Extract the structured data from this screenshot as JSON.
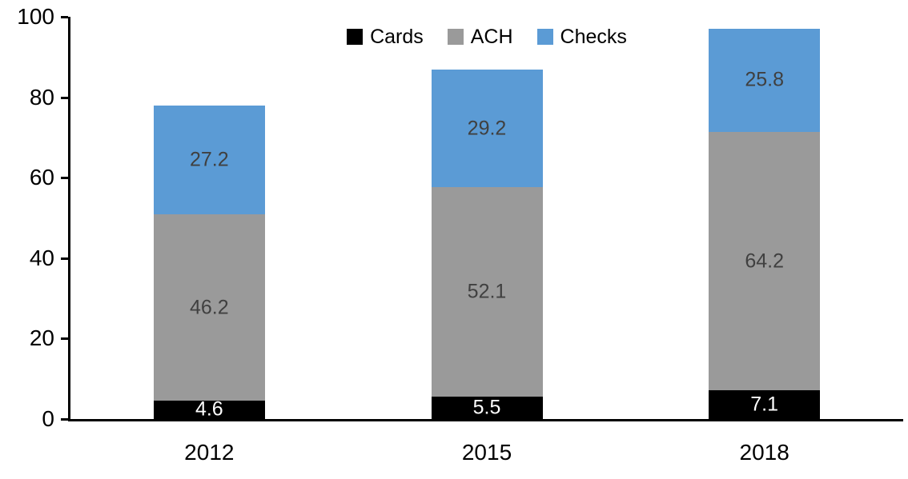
{
  "chart_data": {
    "type": "bar",
    "stacked": true,
    "title": "",
    "xlabel": "",
    "ylabel": "",
    "categories": [
      "2012",
      "2015",
      "2018"
    ],
    "series": [
      {
        "name": "Cards",
        "color": "#000000",
        "label_color": "#ffffff",
        "values": [
          4.6,
          5.5,
          7.1
        ]
      },
      {
        "name": "ACH",
        "color": "#9a9a9a",
        "label_color": "#404040",
        "values": [
          46.2,
          52.1,
          64.2
        ]
      },
      {
        "name": "Checks",
        "color": "#5b9bd5",
        "label_color": "#404040",
        "values": [
          27.2,
          29.2,
          25.8
        ]
      }
    ],
    "yticks": [
      0,
      20,
      40,
      60,
      80,
      100
    ],
    "ylim": [
      0,
      100
    ],
    "grid": false,
    "legend_position": "top",
    "data_labels": true,
    "axis_color": "#000000",
    "background_color": "#ffffff"
  }
}
